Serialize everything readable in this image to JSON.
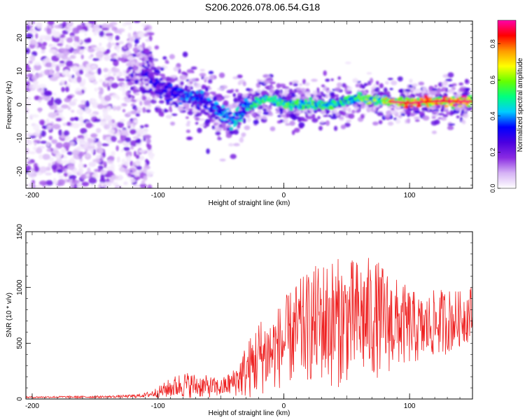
{
  "figure_title": "S206.2026.078.06.54.G18",
  "colors": {
    "snr_line": "#ee2222",
    "axis": "#000000"
  },
  "chart_data": [
    {
      "type": "heatmap",
      "name": "spectrogram",
      "xlabel": "Height of straight line (km)",
      "ylabel": "Frequency (Hz)",
      "xlim": [
        -205,
        150
      ],
      "ylim": [
        -25,
        25
      ],
      "xticks": [
        -200,
        -100,
        0,
        100
      ],
      "yticks": [
        -20,
        -10,
        0,
        10,
        20
      ],
      "colorbar": {
        "label": "Normalized spectral amplitude",
        "range": [
          0.0,
          0.93
        ],
        "ticks": [
          "0.0",
          "0.2",
          "0.4",
          "0.6",
          "0.8"
        ],
        "tick_values": [
          0.0,
          0.2,
          0.4,
          0.6,
          0.8
        ],
        "colormap": [
          "#ffffff",
          "#d6b3f5",
          "#8a2be2",
          "#4b00e0",
          "#0000ff",
          "#00ccff",
          "#00ff80",
          "#66ff00",
          "#ffff00",
          "#ff9900",
          "#ff0000",
          "#ff00aa"
        ]
      },
      "ridge": {
        "x": [
          -110,
          -100,
          -90,
          -80,
          -70,
          -60,
          -50,
          -40,
          -35,
          -30,
          -25,
          -20,
          -10,
          0,
          20,
          40,
          60,
          80,
          100,
          120,
          150
        ],
        "freq": [
          10,
          5,
          4,
          3,
          2,
          0,
          -3,
          -5,
          -2,
          -1,
          0,
          1,
          2,
          0,
          0,
          0,
          2,
          1,
          0.5,
          1,
          1
        ],
        "amplitude": [
          0.3,
          0.3,
          0.35,
          0.4,
          0.4,
          0.4,
          0.45,
          0.45,
          0.5,
          0.5,
          0.55,
          0.55,
          0.6,
          0.6,
          0.6,
          0.55,
          0.6,
          0.7,
          0.9,
          0.9,
          0.9
        ]
      }
    },
    {
      "type": "line",
      "name": "snr",
      "xlabel": "Height of straight line (km)",
      "ylabel": "SNR (10 * v/v)",
      "xlim": [
        -205,
        150
      ],
      "ylim": [
        0,
        1500
      ],
      "xticks": [
        -200,
        -100,
        0,
        100
      ],
      "yticks": [
        0,
        500,
        1000,
        1500
      ],
      "series": [
        {
          "name": "SNR",
          "x": [
            -205,
            -180,
            -160,
            -140,
            -120,
            -110,
            -100,
            -90,
            -80,
            -70,
            -60,
            -50,
            -40,
            -30,
            -25,
            -20,
            -10,
            0,
            10,
            20,
            30,
            40,
            50,
            60,
            70,
            80,
            90,
            100,
            110,
            120,
            130,
            140,
            150
          ],
          "mean": [
            15,
            18,
            18,
            20,
            25,
            35,
            60,
            100,
            130,
            120,
            110,
            100,
            150,
            250,
            300,
            380,
            420,
            500,
            600,
            650,
            700,
            680,
            700,
            720,
            730,
            700,
            680,
            650,
            620,
            680,
            700,
            720,
            780
          ],
          "spread": [
            8,
            8,
            10,
            10,
            15,
            20,
            50,
            90,
            120,
            110,
            100,
            80,
            120,
            250,
            300,
            350,
            350,
            400,
            450,
            500,
            550,
            600,
            550,
            550,
            550,
            500,
            400,
            350,
            300,
            300,
            300,
            250,
            250
          ]
        }
      ]
    }
  ]
}
